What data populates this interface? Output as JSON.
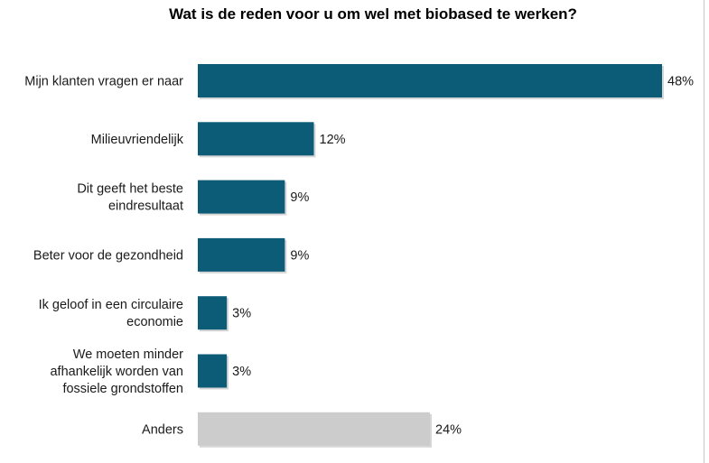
{
  "chart_data": {
    "type": "bar",
    "orientation": "horizontal",
    "title": "Wat is de reden voor u om wel met biobased te werken?",
    "categories": [
      [
        "Mijn klanten vragen er naar"
      ],
      [
        "Milieuvriendelijk"
      ],
      [
        "Dit geeft het beste",
        "eindresultaat"
      ],
      [
        "Beter voor de gezondheid"
      ],
      [
        "Ik geloof in een circulaire",
        "economie"
      ],
      [
        "We moeten minder",
        "afhankelijk worden van",
        "fossiele grondstoffen"
      ],
      [
        "Anders"
      ]
    ],
    "values": [
      48,
      12,
      9,
      9,
      3,
      3,
      24
    ],
    "value_labels": [
      "48%",
      "12%",
      "9%",
      "9%",
      "3%",
      "3%",
      "24%"
    ],
    "colors": [
      "#0c5c78",
      "#0c5c78",
      "#0c5c78",
      "#0c5c78",
      "#0c5c78",
      "#0c5c78",
      "#cccccc"
    ],
    "xlim": [
      0,
      48
    ],
    "grid": false,
    "legend": "none"
  }
}
